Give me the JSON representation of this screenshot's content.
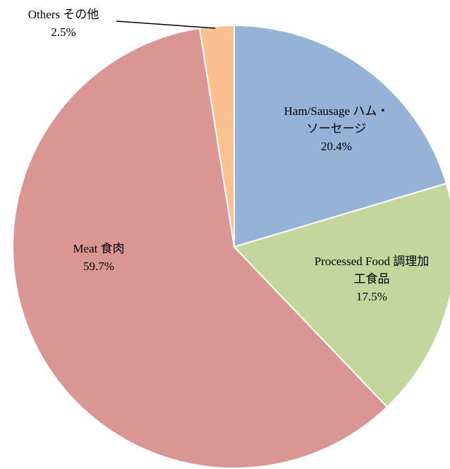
{
  "chart_data": {
    "type": "pie",
    "categories": [
      "Ham/Sausage ハム・ソーセージ",
      "Processed Food 調理加工食品",
      "Meat 食肉",
      "Others その他"
    ],
    "values": [
      20.4,
      17.5,
      59.7,
      2.5
    ],
    "value_labels": [
      "20.4%",
      "17.5%",
      "59.7%",
      "2.5%"
    ],
    "colors": [
      "#95b3d7",
      "#c3d69b",
      "#d99694",
      "#fac090"
    ]
  }
}
